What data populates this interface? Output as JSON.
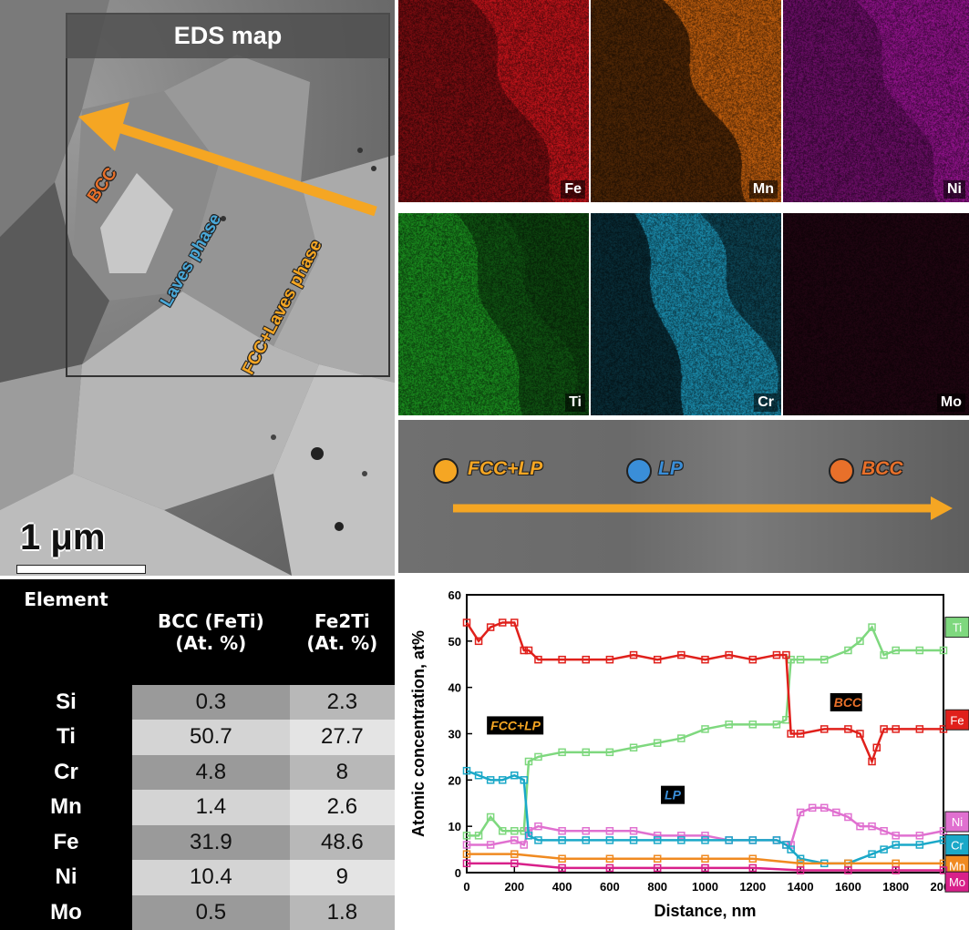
{
  "sem": {
    "title": "EDS map",
    "scale": "1 μm",
    "labels": {
      "bcc": "BCC",
      "laves": "Laves phase",
      "fcc_laves": "FCC+Laves phase"
    },
    "colors": {
      "bcc": "#e8702a",
      "laves": "#4aa8d8",
      "fcc_laves": "#f5a623",
      "arrow": "#f5a623"
    }
  },
  "maps": [
    {
      "element": "Fe",
      "color": "#c8141b"
    },
    {
      "element": "Mn",
      "color": "#c8620f"
    },
    {
      "element": "Ni",
      "color": "#a0159a"
    },
    {
      "element": "Ti",
      "color": "#1a8a1e"
    },
    {
      "element": "Cr",
      "color": "#1a88a8"
    },
    {
      "element": "Mo",
      "color": "#3a0a20"
    }
  ],
  "line_profile": {
    "labels": [
      {
        "text": "FCC+LP",
        "dot": "#f5a623",
        "color": "#f5a623"
      },
      {
        "text": "LP",
        "dot": "#3a8ed8",
        "color": "#3a8ed8"
      },
      {
        "text": "BCC",
        "dot": "#e8702a",
        "color": "#e8702a"
      }
    ]
  },
  "table": {
    "headers": {
      "element": "Element",
      "bcc_line1": "BCC (FeTi)",
      "bcc_line2": "(At. %)",
      "laves_line1": "Fe2Ti",
      "laves_line2": "(At. %)"
    },
    "rows": [
      {
        "element": "Si",
        "bcc": "0.3",
        "laves": "2.3"
      },
      {
        "element": "Ti",
        "bcc": "50.7",
        "laves": "27.7"
      },
      {
        "element": "Cr",
        "bcc": "4.8",
        "laves": "8"
      },
      {
        "element": "Mn",
        "bcc": "1.4",
        "laves": "2.6"
      },
      {
        "element": "Fe",
        "bcc": "31.9",
        "laves": "48.6"
      },
      {
        "element": "Ni",
        "bcc": "10.4",
        "laves": "9"
      },
      {
        "element": "Mo",
        "bcc": "0.5",
        "laves": "1.8"
      }
    ]
  },
  "chart_data": {
    "type": "line",
    "xlabel": "Distance, nm",
    "ylabel": "Atomic concentration, at%",
    "xlim": [
      0,
      2000
    ],
    "ylim": [
      0,
      60
    ],
    "xticks": [
      0,
      200,
      400,
      600,
      800,
      1000,
      1200,
      1400,
      1600,
      1800,
      2000
    ],
    "yticks": [
      0,
      10,
      20,
      30,
      40,
      50,
      60
    ],
    "annotations": [
      {
        "text": "FCC+LP",
        "x": 100,
        "y": 31
      },
      {
        "text": "LP",
        "x": 830,
        "y": 16
      },
      {
        "text": "BCC",
        "x": 1540,
        "y": 36
      }
    ],
    "series": [
      {
        "name": "Ti",
        "color": "#7ed87e",
        "x": [
          0,
          50,
          100,
          150,
          200,
          240,
          260,
          300,
          400,
          500,
          600,
          700,
          800,
          900,
          1000,
          1100,
          1200,
          1300,
          1340,
          1360,
          1400,
          1500,
          1600,
          1650,
          1700,
          1750,
          1800,
          1900,
          2000
        ],
        "y": [
          8,
          8,
          12,
          9,
          9,
          9,
          24,
          25,
          26,
          26,
          26,
          27,
          28,
          29,
          31,
          32,
          32,
          32,
          33,
          46,
          46,
          46,
          48,
          50,
          53,
          47,
          48,
          48,
          48
        ]
      },
      {
        "name": "Fe",
        "color": "#e0201b",
        "x": [
          0,
          50,
          100,
          150,
          200,
          240,
          260,
          300,
          400,
          500,
          600,
          700,
          800,
          900,
          1000,
          1100,
          1200,
          1300,
          1340,
          1360,
          1400,
          1500,
          1600,
          1650,
          1700,
          1720,
          1750,
          1800,
          1900,
          2000
        ],
        "y": [
          54,
          50,
          53,
          54,
          54,
          48,
          48,
          46,
          46,
          46,
          46,
          47,
          46,
          47,
          46,
          47,
          46,
          47,
          47,
          30,
          30,
          31,
          31,
          30,
          24,
          27,
          31,
          31,
          31,
          31
        ]
      },
      {
        "name": "Ni",
        "color": "#e070d0",
        "x": [
          0,
          100,
          200,
          240,
          260,
          300,
          400,
          500,
          600,
          700,
          800,
          900,
          1000,
          1100,
          1200,
          1300,
          1340,
          1360,
          1400,
          1450,
          1500,
          1550,
          1600,
          1650,
          1700,
          1750,
          1800,
          1900,
          2000
        ],
        "y": [
          6,
          6,
          7,
          6,
          9,
          10,
          9,
          9,
          9,
          9,
          8,
          8,
          8,
          7,
          7,
          7,
          6,
          6,
          13,
          14,
          14,
          13,
          12,
          10,
          10,
          9,
          8,
          8,
          9
        ]
      },
      {
        "name": "Cr",
        "color": "#1aa8c8",
        "x": [
          0,
          50,
          100,
          150,
          200,
          240,
          260,
          300,
          400,
          500,
          600,
          700,
          800,
          900,
          1000,
          1100,
          1200,
          1300,
          1340,
          1360,
          1400,
          1500,
          1600,
          1700,
          1750,
          1800,
          1900,
          2000
        ],
        "y": [
          22,
          21,
          20,
          20,
          21,
          20,
          8,
          7,
          7,
          7,
          7,
          7,
          7,
          7,
          7,
          7,
          7,
          7,
          6,
          5,
          3,
          2,
          2,
          4,
          5,
          6,
          6,
          7
        ]
      },
      {
        "name": "Mn",
        "color": "#f08a20",
        "x": [
          0,
          200,
          400,
          600,
          800,
          1000,
          1200,
          1400,
          1600,
          1800,
          2000
        ],
        "y": [
          4,
          4,
          3,
          3,
          3,
          3,
          3,
          2,
          2,
          2,
          2
        ]
      },
      {
        "name": "Mo",
        "color": "#d8208a",
        "x": [
          0,
          200,
          400,
          600,
          800,
          1000,
          1200,
          1400,
          1600,
          1800,
          2000
        ],
        "y": [
          2,
          2,
          1,
          1,
          1,
          1,
          1,
          0.5,
          0.5,
          0.5,
          0.5
        ]
      }
    ]
  }
}
